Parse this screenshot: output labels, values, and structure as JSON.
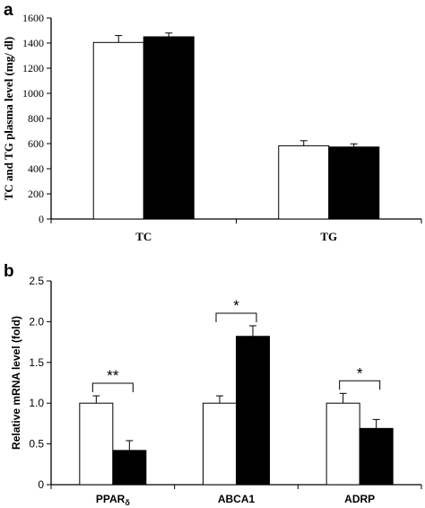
{
  "chart_data": [
    {
      "panel": "a",
      "type": "bar",
      "categories": [
        "TC",
        "TG"
      ],
      "series": [
        {
          "color": "#ffffff",
          "values": [
            1405,
            583
          ],
          "errors": [
            55,
            40
          ]
        },
        {
          "color": "#000000",
          "values": [
            1450,
            573
          ],
          "errors": [
            30,
            25
          ]
        }
      ],
      "ylabel": "TC and TG plasma level (mg/ dl)",
      "ylim": [
        0,
        1600
      ],
      "yticks": [
        "0",
        "200",
        "400",
        "600",
        "800",
        "1000",
        "1200",
        "1400",
        "1600"
      ],
      "grid": false
    },
    {
      "panel": "b",
      "type": "bar",
      "categories": [
        "PPAR",
        "ABCA1",
        "ADRP"
      ],
      "category_subscripts": [
        "δ",
        "",
        ""
      ],
      "series": [
        {
          "color": "#ffffff",
          "values": [
            1.0,
            1.0,
            1.0
          ],
          "errors": [
            0.09,
            0.09,
            0.12
          ]
        },
        {
          "color": "#000000",
          "values": [
            0.42,
            1.82,
            0.69
          ],
          "errors": [
            0.12,
            0.13,
            0.11
          ]
        }
      ],
      "significance": [
        "**",
        "*",
        "*"
      ],
      "ylabel": "Relative mRNA level (fold)",
      "ylim": [
        0,
        2.5
      ],
      "yticks": [
        "0",
        "0.5",
        "1.0",
        "1.5",
        "2.0",
        "2.5"
      ],
      "grid": false
    }
  ]
}
